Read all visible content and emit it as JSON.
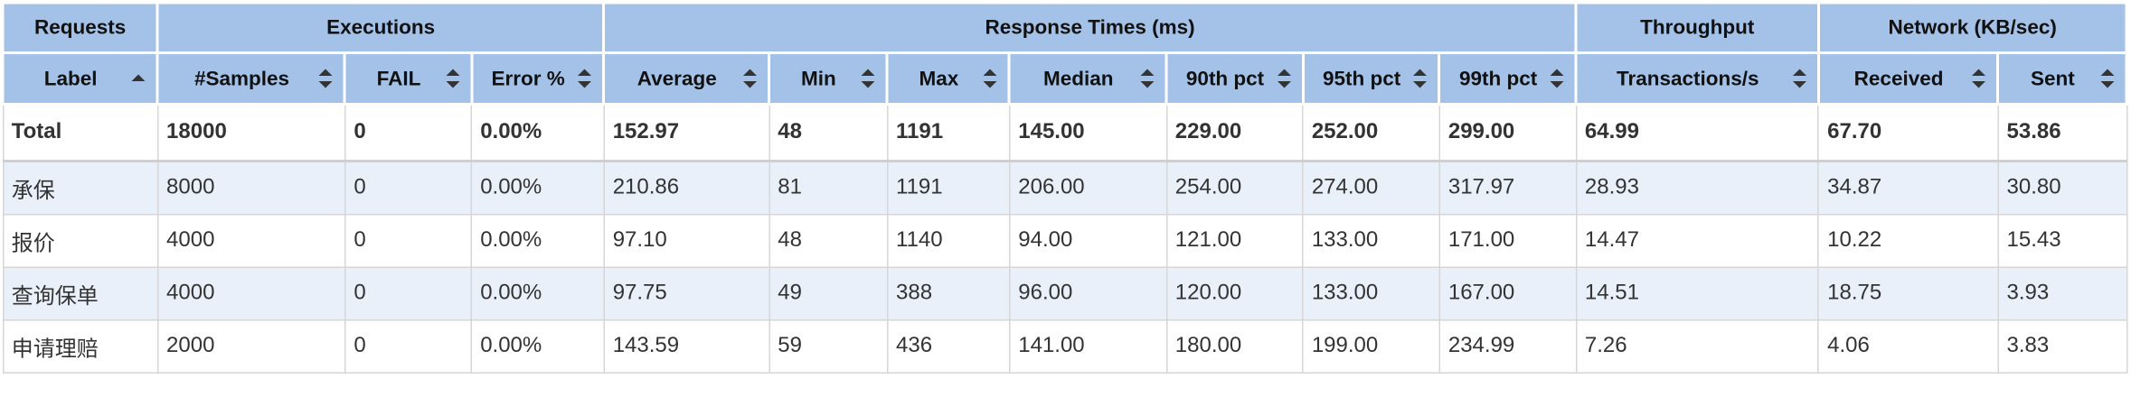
{
  "group_headers": [
    "Requests",
    "Executions",
    "Response Times (ms)",
    "Throughput",
    "Network (KB/sec)"
  ],
  "columns": [
    "Label",
    "#Samples",
    "FAIL",
    "Error %",
    "Average",
    "Min",
    "Max",
    "Median",
    "90th pct",
    "95th pct",
    "99th pct",
    "Transactions/s",
    "Received",
    "Sent"
  ],
  "total": [
    "Total",
    "18000",
    "0",
    "0.00%",
    "152.97",
    "48",
    "1191",
    "145.00",
    "229.00",
    "252.00",
    "299.00",
    "64.99",
    "67.70",
    "53.86"
  ],
  "rows": [
    [
      "承保",
      "8000",
      "0",
      "0.00%",
      "210.86",
      "81",
      "1191",
      "206.00",
      "254.00",
      "274.00",
      "317.97",
      "28.93",
      "34.87",
      "30.80"
    ],
    [
      "报价",
      "4000",
      "0",
      "0.00%",
      "97.10",
      "48",
      "1140",
      "94.00",
      "121.00",
      "133.00",
      "171.00",
      "14.47",
      "10.22",
      "15.43"
    ],
    [
      "查询保单",
      "4000",
      "0",
      "0.00%",
      "97.75",
      "49",
      "388",
      "96.00",
      "120.00",
      "133.00",
      "167.00",
      "14.51",
      "18.75",
      "3.93"
    ],
    [
      "申请理赔",
      "2000",
      "0",
      "0.00%",
      "143.59",
      "59",
      "436",
      "141.00",
      "180.00",
      "199.00",
      "234.99",
      "7.26",
      "4.06",
      "3.83"
    ]
  ],
  "colors": {
    "header_bg": "#a4c2e8",
    "stripe_bg": "#e9f0fa"
  },
  "icons": {
    "sort": "sort-icon",
    "sort_asc": "sort-ascending-icon"
  }
}
